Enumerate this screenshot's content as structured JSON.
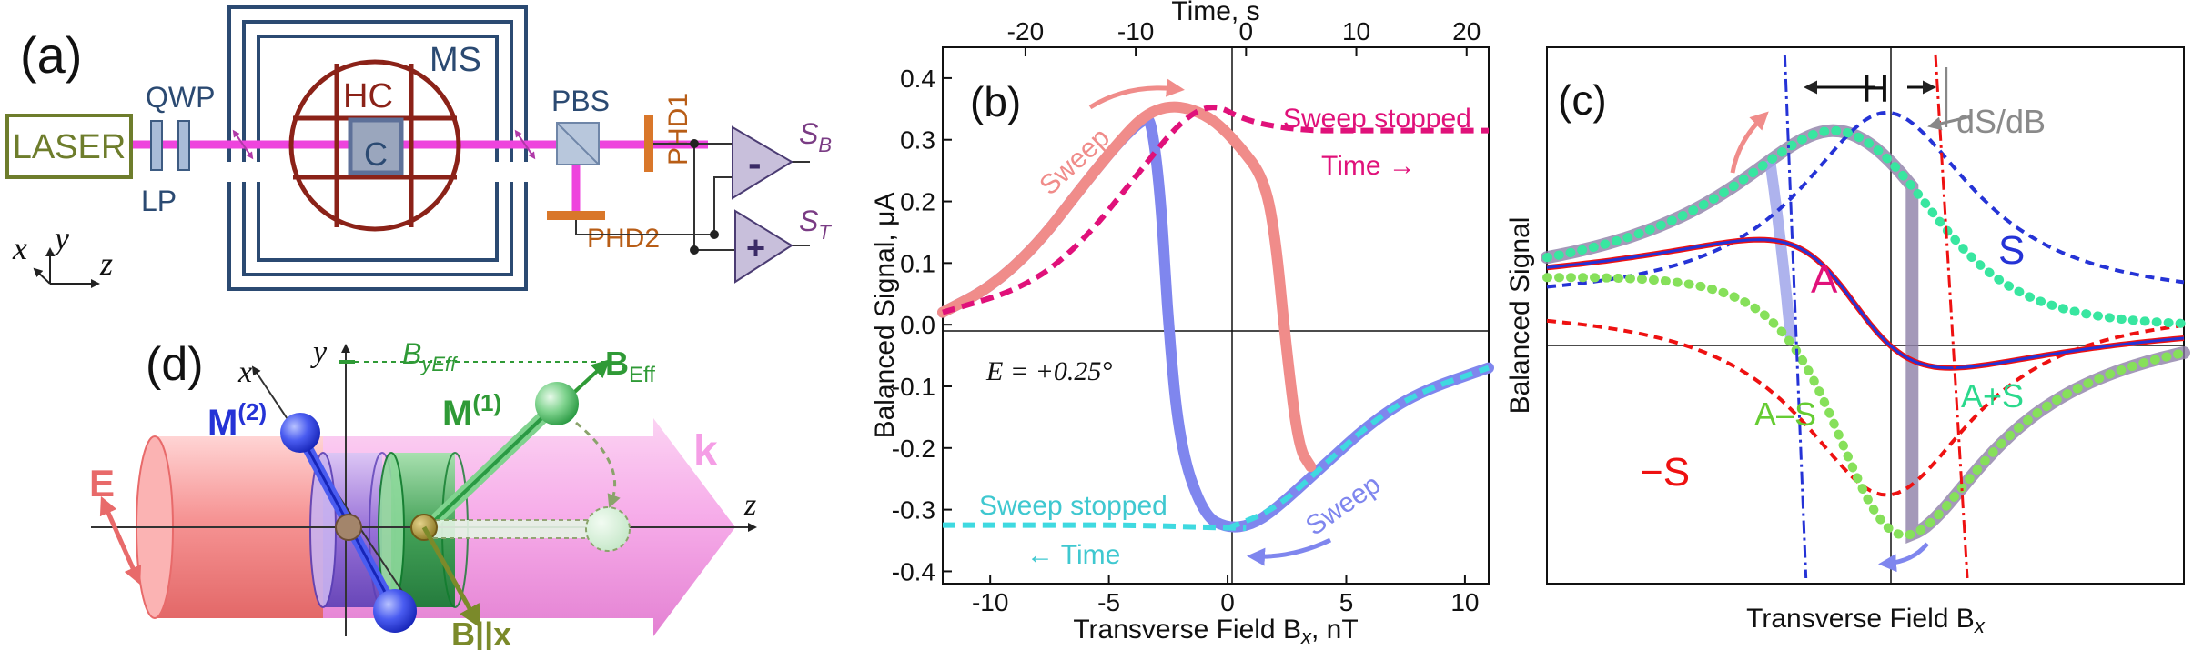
{
  "colors": {
    "laser_box": "#6e7d2c",
    "beam": "#ee44dd",
    "blue_optics": "#3d5b82",
    "shield": "#2b4a72",
    "cell": "#8b2218",
    "detector": "#d9772a",
    "salmon": "#f08c8a",
    "periwinkle": "#7f86ee",
    "magenta_dash": "#e0117a",
    "cyan_dash": "#3fd9e0",
    "green_m1": "#2f9a36",
    "blue_m2": "#2533d6",
    "olive": "#7b8a2a",
    "pink_k": "#f59ee6",
    "red_e": "#e86a6a",
    "gray_curve": "#8d80a8",
    "green_dots": "#86e05a",
    "teal_dots": "#38e6a0"
  },
  "panel_a": {
    "label": "(a)",
    "laser": "LASER",
    "qwp": "QWP",
    "lp": "LP",
    "ms": "MS",
    "hc": "HC",
    "cell": "C",
    "pbs": "PBS",
    "phd1": "PHD1",
    "phd2": "PHD2",
    "minus": "-",
    "plus": "+",
    "sb": "S",
    "sb_sub": "B",
    "st": "S",
    "st_sub": "T",
    "ax_x": "x",
    "ax_y": "y",
    "ax_z": "z"
  },
  "panel_d": {
    "label": "(d)",
    "x": "x",
    "y": "y",
    "z": "z",
    "bjeff": "B",
    "bjeff_sub": "yEff",
    "beff": "B",
    "beff_sub": "Eff",
    "m1": "M",
    "m1_sup": "(1)",
    "m2": "M",
    "m2_sup": "(2)",
    "k": "k",
    "e": "E",
    "bx": "B||x"
  },
  "panel_b": {
    "label": "(b)",
    "top_axis_title": "Time, s",
    "top_ticks": [
      "-20",
      "-10",
      "0",
      "10",
      "20"
    ],
    "top_tick_values": [
      -20,
      -10,
      0,
      10,
      20
    ],
    "bottom_axis_title": "Transverse Field B",
    "bottom_axis_sub": "x",
    "bottom_axis_unit": ", nT",
    "bottom_ticks": [
      "-10",
      "-5",
      "0",
      "5",
      "10"
    ],
    "bottom_tick_values": [
      -10,
      -5,
      0,
      5,
      10
    ],
    "y_axis_title": "Balanced Signal, μA",
    "y_ticks": [
      "0.4",
      "0.3",
      "0.2",
      "0.1",
      "0.0",
      "-0.1",
      "-0.2",
      "-0.3",
      "-0.4"
    ],
    "y_tick_values": [
      0.4,
      0.3,
      0.2,
      0.1,
      0.0,
      -0.1,
      -0.2,
      -0.3,
      -0.4
    ],
    "ann_sweep_top": "Sweep",
    "ann_sweep_stopped_top": "Sweep stopped",
    "ann_time_right": "Time →",
    "ann_e": "E = +0.25°",
    "ann_sweep_bottom": "Sweep",
    "ann_sweep_stopped_bottom": "Sweep stopped",
    "ann_time_left": "← Time"
  },
  "panel_c": {
    "label": "(c)",
    "h": "H",
    "dsdb": "dS/dB",
    "s": "S",
    "a": "A",
    "a_minus_s": "A–S",
    "a_plus_s": "A+S",
    "minus_s": "−S",
    "y_axis_title": "Balanced Signal",
    "x_axis_title": "Transverse Field B",
    "x_axis_sub": "x"
  },
  "chart_data": [
    {
      "type": "line",
      "panel": "b",
      "title": "",
      "xlabel": "Transverse Field Bx, nT",
      "x2label": "Time, s",
      "ylabel": "Balanced Signal, μA",
      "xlim": [
        -12,
        11
      ],
      "x2lim": [
        -27.5,
        22
      ],
      "ylim": [
        -0.42,
        0.45
      ],
      "series": [
        {
          "name": "Sweep up (salmon)",
          "x": [
            -12,
            -10,
            -8,
            -6,
            -4.5,
            -3.5,
            -2.5,
            -1.5,
            -0.5,
            0.5,
            1.5,
            2,
            2.5,
            3,
            3.5
          ],
          "y": [
            0.02,
            0.06,
            0.13,
            0.23,
            0.3,
            0.34,
            0.355,
            0.35,
            0.33,
            0.29,
            0.24,
            0.15,
            -0.05,
            -0.2,
            -0.23
          ]
        },
        {
          "name": "Sweep down (periwinkle)",
          "x": [
            -12,
            -10,
            -8,
            -6,
            -4.5,
            -3.5,
            -3.2,
            -2.8,
            -2.5,
            -2.0,
            -1.0,
            0,
            1,
            2,
            4,
            6,
            8,
            11
          ],
          "y": [
            0.02,
            0.06,
            0.13,
            0.23,
            0.3,
            0.335,
            0.33,
            0.2,
            0.0,
            -0.2,
            -0.31,
            -0.33,
            -0.325,
            -0.3,
            -0.23,
            -0.16,
            -0.11,
            -0.07
          ]
        },
        {
          "name": "Sweep stopped top (magenta dashed)",
          "time_s": [
            -27.5,
            -20,
            -15,
            -10,
            -6,
            -3,
            0,
            5,
            10,
            20,
            22
          ],
          "y": [
            0.02,
            0.06,
            0.13,
            0.24,
            0.33,
            0.36,
            0.33,
            0.315,
            0.315,
            0.315,
            0.315
          ]
        },
        {
          "name": "Sweep stopped bottom (cyan dashed)",
          "time_s": [
            -27.5,
            -20,
            -10,
            -5,
            0
          ],
          "y": [
            -0.325,
            -0.325,
            -0.325,
            -0.328,
            -0.33
          ]
        },
        {
          "name": "Sweep up return (cyan dashed)",
          "x": [
            0,
            2,
            4,
            6,
            8,
            11
          ],
          "y": [
            -0.33,
            -0.3,
            -0.23,
            -0.16,
            -0.11,
            -0.07
          ]
        }
      ]
    },
    {
      "type": "line",
      "panel": "c",
      "title": "",
      "xlabel": "Transverse Field Bx",
      "ylabel": "Balanced Signal",
      "xlim": [
        -1.5,
        1.5
      ],
      "ylim": [
        -1.2,
        1.1
      ],
      "series": [
        {
          "name": "S (blue dashed)",
          "shape": "absorptive Lorentzian offset"
        },
        {
          "name": "-S (red dashed)",
          "shape": "negative absorptive Lorentzian"
        },
        {
          "name": "A (blue/red)",
          "shape": "dispersive Lorentzian"
        },
        {
          "name": "A+S (teal dotted)",
          "shape": "sum"
        },
        {
          "name": "A-S (green dotted)",
          "shape": "difference"
        },
        {
          "name": "hysteresis (gray)",
          "shape": "A+S then A-S with jumps"
        }
      ]
    }
  ]
}
